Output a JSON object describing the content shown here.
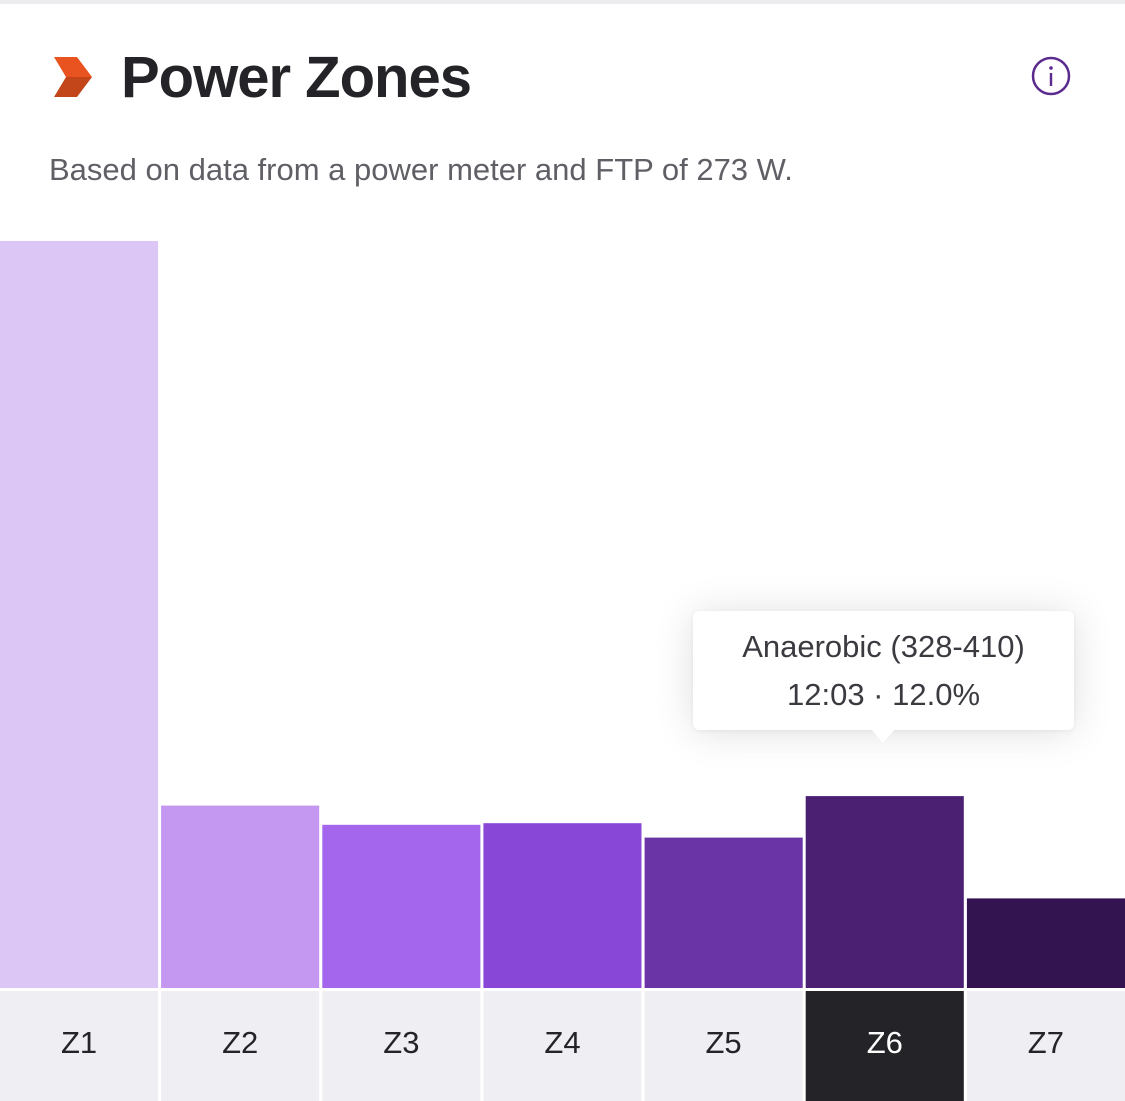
{
  "header": {
    "title": "Power Zones",
    "subtitle": "Based on data from a power meter and FTP of 273 W.",
    "brand_icon": "chevron-right-icon",
    "info_icon": "info-icon",
    "brand_color": "#e8531f",
    "info_color": "#5a2a8e"
  },
  "tooltip": {
    "zone": "Z6",
    "line1": "Anaerobic (328-410)",
    "line2": "12:03 · 12.0%"
  },
  "chart_data": {
    "type": "bar",
    "title": "Power Zones",
    "xlabel": "",
    "ylabel": "",
    "categories": [
      "Z1",
      "Z2",
      "Z3",
      "Z4",
      "Z5",
      "Z6",
      "Z7"
    ],
    "values": [
      46.7,
      11.4,
      10.2,
      10.3,
      9.4,
      12.0,
      5.6
    ],
    "unit": "% of time",
    "ylim": [
      0,
      46.7
    ],
    "grid": false,
    "legend": "none",
    "selected": "Z6",
    "colors": [
      "#dcc6f5",
      "#c497f0",
      "#a466ec",
      "#8847d6",
      "#6a34a6",
      "#4b2073",
      "#331450"
    ],
    "label_bg": "#efeef3",
    "label_selected_bg": "#242428",
    "label_color": "#242428",
    "label_selected_color": "#ffffff"
  }
}
